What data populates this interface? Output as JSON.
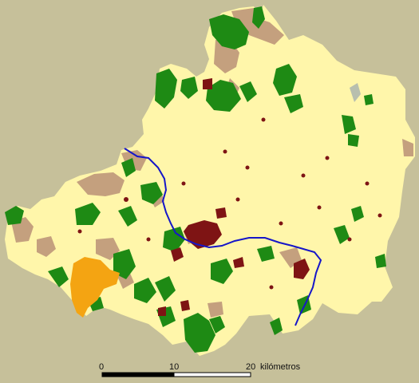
{
  "map": {
    "colors": {
      "background": "#C6C09A",
      "land": "#FFF6AA",
      "forest": "#1E8A14",
      "scrub": "#C4A07E",
      "urban": "#7E1414",
      "orange": "#F4A412",
      "river": "#1616C8",
      "water": "#B8BFAE"
    },
    "legend": [
      "land",
      "forest",
      "scrub",
      "urban",
      "orange",
      "river"
    ]
  },
  "scale_bar": {
    "labels": [
      "0",
      "10",
      "20"
    ],
    "unit": "kilómetros"
  }
}
